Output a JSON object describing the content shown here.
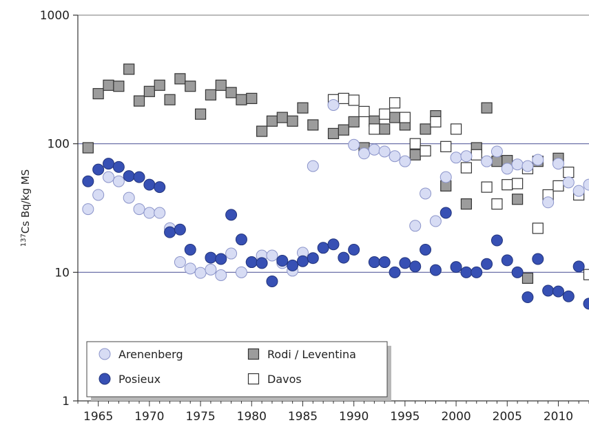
{
  "chart_data": {
    "type": "scatter",
    "title": "",
    "xlabel": "",
    "ylabel": {
      "sup": "137",
      "text": "Cs Bq/kg MS"
    },
    "xlim": [
      1963,
      2013
    ],
    "ylim": [
      1,
      1000
    ],
    "yscale": "log",
    "x_ticks": [
      1965,
      1970,
      1975,
      1980,
      1985,
      1990,
      1995,
      2000,
      2005,
      2010
    ],
    "y_ticks": [
      {
        "value": 1,
        "label": "1"
      },
      {
        "value": 10,
        "label": "10"
      },
      {
        "value": 100,
        "label": "100"
      },
      {
        "value": 1000,
        "label": "1000"
      }
    ],
    "gridlines_y": [
      10,
      100
    ],
    "legend_position": "bottom-left",
    "series": [
      {
        "name": "Arenenberg",
        "marker": "circle",
        "fill": "#d7dcf4",
        "stroke": "#8a93c9",
        "points": [
          [
            1964,
            31
          ],
          [
            1965,
            40
          ],
          [
            1966,
            55
          ],
          [
            1967,
            51
          ],
          [
            1968,
            38
          ],
          [
            1969,
            31
          ],
          [
            1970,
            29
          ],
          [
            1971,
            29
          ],
          [
            1972,
            22
          ],
          [
            1973,
            12
          ],
          [
            1974,
            10.7
          ],
          [
            1975,
            9.9
          ],
          [
            1976,
            10.5
          ],
          [
            1977,
            9.5
          ],
          [
            1978,
            14
          ],
          [
            1979,
            10
          ],
          [
            1980,
            12
          ],
          [
            1981,
            13.5
          ],
          [
            1982,
            13.5
          ],
          [
            1983,
            11.8
          ],
          [
            1984,
            10.3
          ],
          [
            1985,
            14.2
          ],
          [
            1986,
            67
          ],
          [
            1988,
            200
          ],
          [
            1990,
            98
          ],
          [
            1991,
            84
          ],
          [
            1992,
            90
          ],
          [
            1993,
            87
          ],
          [
            1994,
            80
          ],
          [
            1995,
            73
          ],
          [
            1996,
            23
          ],
          [
            1997,
            41
          ],
          [
            1998,
            25
          ],
          [
            1999,
            55
          ],
          [
            2000,
            78
          ],
          [
            2001,
            80
          ],
          [
            2003,
            73
          ],
          [
            2004,
            87
          ],
          [
            2005,
            64
          ],
          [
            2006,
            69
          ],
          [
            2007,
            67
          ],
          [
            2008,
            75
          ],
          [
            2009,
            35
          ],
          [
            2010,
            70
          ],
          [
            2011,
            50
          ],
          [
            2012,
            43
          ],
          [
            2013,
            48
          ]
        ]
      },
      {
        "name": "Posieux",
        "marker": "circle",
        "fill": "#3750b4",
        "stroke": "#22347c",
        "points": [
          [
            1964,
            51
          ],
          [
            1965,
            63
          ],
          [
            1966,
            70
          ],
          [
            1967,
            66
          ],
          [
            1968,
            56
          ],
          [
            1969,
            55
          ],
          [
            1970,
            48
          ],
          [
            1971,
            46
          ],
          [
            1972,
            20.5
          ],
          [
            1973,
            21.5
          ],
          [
            1974,
            15
          ],
          [
            1976,
            13
          ],
          [
            1977,
            12.7
          ],
          [
            1978,
            28
          ],
          [
            1979,
            18
          ],
          [
            1980,
            12
          ],
          [
            1981,
            11.8
          ],
          [
            1982,
            8.5
          ],
          [
            1983,
            12.3
          ],
          [
            1984,
            11.3
          ],
          [
            1985,
            12.2
          ],
          [
            1986,
            12.9
          ],
          [
            1987,
            15.5
          ],
          [
            1988,
            16.5
          ],
          [
            1989,
            13
          ],
          [
            1990,
            15
          ],
          [
            1992,
            12
          ],
          [
            1993,
            12
          ],
          [
            1994,
            10
          ],
          [
            1995,
            11.8
          ],
          [
            1996,
            11.1
          ],
          [
            1997,
            15
          ],
          [
            1998,
            10.4
          ],
          [
            1999,
            29
          ],
          [
            2000,
            11
          ],
          [
            2001,
            10
          ],
          [
            2002,
            10
          ],
          [
            2003,
            11.6
          ],
          [
            2004,
            17.7
          ],
          [
            2005,
            12.4
          ],
          [
            2006,
            10
          ],
          [
            2007,
            6.4
          ],
          [
            2008,
            12.7
          ],
          [
            2009,
            7.2
          ],
          [
            2010,
            7.1
          ],
          [
            2011,
            6.5
          ],
          [
            2012,
            11.1
          ],
          [
            2013,
            5.7
          ]
        ]
      },
      {
        "name": "Rodi / Leventina",
        "marker": "square",
        "fill": "#9c9c9c",
        "stroke": "#333333",
        "points": [
          [
            1964,
            93
          ],
          [
            1965,
            245
          ],
          [
            1966,
            285
          ],
          [
            1967,
            280
          ],
          [
            1968,
            380
          ],
          [
            1969,
            215
          ],
          [
            1970,
            255
          ],
          [
            1971,
            285
          ],
          [
            1972,
            220
          ],
          [
            1973,
            320
          ],
          [
            1974,
            280
          ],
          [
            1975,
            170
          ],
          [
            1976,
            240
          ],
          [
            1977,
            285
          ],
          [
            1978,
            250
          ],
          [
            1979,
            220
          ],
          [
            1980,
            225
          ],
          [
            1981,
            125
          ],
          [
            1982,
            150
          ],
          [
            1983,
            160
          ],
          [
            1984,
            150
          ],
          [
            1985,
            190
          ],
          [
            1986,
            140
          ],
          [
            1988,
            120
          ],
          [
            1989,
            128
          ],
          [
            1990,
            148
          ],
          [
            1991,
            93
          ],
          [
            1992,
            150
          ],
          [
            1993,
            130
          ],
          [
            1994,
            160
          ],
          [
            1995,
            140
          ],
          [
            1996,
            82
          ],
          [
            1997,
            130
          ],
          [
            1998,
            165
          ],
          [
            1999,
            47
          ],
          [
            2001,
            34
          ],
          [
            2002,
            93
          ],
          [
            2003,
            190
          ],
          [
            2004,
            73
          ],
          [
            2005,
            74
          ],
          [
            2006,
            37
          ],
          [
            2007,
            9
          ],
          [
            2008,
            73
          ],
          [
            2010,
            77
          ]
        ]
      },
      {
        "name": "Davos",
        "marker": "square",
        "fill": "#ffffff",
        "stroke": "#333333",
        "points": [
          [
            1988,
            220
          ],
          [
            1989,
            225
          ],
          [
            1990,
            218
          ],
          [
            1991,
            178
          ],
          [
            1992,
            130
          ],
          [
            1993,
            170
          ],
          [
            1994,
            208
          ],
          [
            1995,
            160
          ],
          [
            1996,
            100
          ],
          [
            1997,
            88
          ],
          [
            1998,
            148
          ],
          [
            1999,
            95
          ],
          [
            2000,
            130
          ],
          [
            2001,
            65
          ],
          [
            2002,
            82
          ],
          [
            2003,
            46
          ],
          [
            2004,
            34
          ],
          [
            2005,
            48
          ],
          [
            2006,
            49
          ],
          [
            2007,
            64
          ],
          [
            2008,
            22
          ],
          [
            2009,
            40
          ],
          [
            2010,
            47
          ],
          [
            2011,
            60
          ],
          [
            2012,
            40
          ],
          [
            2013,
            9.6
          ]
        ]
      }
    ]
  }
}
